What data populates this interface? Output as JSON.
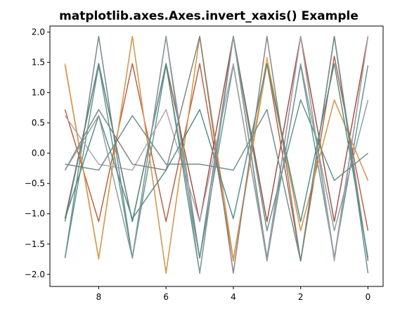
{
  "chart_data": {
    "type": "line",
    "title": "matplotlib.axes.Axes.invert_xaxis() Example",
    "xlabel": "",
    "ylabel": "",
    "x": [
      9,
      8,
      7,
      6,
      5,
      4,
      3,
      2,
      1,
      0
    ],
    "xlim": [
      9.45,
      -0.45
    ],
    "ylim": [
      -2.2,
      2.1
    ],
    "x_inverted": true,
    "grid": false,
    "legend": "none",
    "xticks": [
      8,
      6,
      4,
      2,
      0
    ],
    "yticks": [
      2.0,
      1.5,
      1.0,
      0.5,
      0.0,
      -0.5,
      -1.0,
      -1.5,
      -2.0
    ],
    "xtick_labels": [
      "8",
      "6",
      "4",
      "2",
      "0"
    ],
    "ytick_labels": [
      "2.0",
      "1.5",
      "1.0",
      "0.5",
      "0.0",
      "−0.5",
      "−1.0",
      "−1.5",
      "−2.0"
    ],
    "series": [
      {
        "color": "#70858a",
        "values": [
          -1.73,
          1.93,
          -1.73,
          1.93,
          -1.73,
          1.93,
          -1.73,
          1.93,
          -1.73,
          1.93
        ]
      },
      {
        "color": "#5a9590",
        "values": [
          -1.73,
          1.45,
          -1.73,
          1.45,
          -1.73,
          1.45,
          -1.73,
          1.45,
          -1.73,
          1.45
        ]
      },
      {
        "color": "#b55a3b",
        "values": [
          0.72,
          -1.13,
          1.48,
          -1.13,
          1.48,
          -1.78,
          1.48,
          -1.78,
          1.6,
          -1.28
        ]
      },
      {
        "color": "#9b4a3a",
        "values": [
          -1.08,
          1.48,
          -1.13,
          1.48,
          -1.13,
          1.93,
          -1.13,
          1.93,
          -1.13,
          1.93
        ]
      },
      {
        "color": "#e0a040",
        "values": [
          1.48,
          -1.73,
          1.93,
          -1.98,
          1.93,
          -1.78,
          1.58,
          -1.28,
          0.88,
          -0.45
        ]
      },
      {
        "color": "#d59a55",
        "values": [
          1.45,
          -1.75,
          1.93,
          -1.98,
          1.93,
          -1.75,
          1.48,
          -1.28,
          0.88,
          -0.45
        ]
      },
      {
        "color": "#b0a0aa",
        "values": [
          0.62,
          -0.18,
          -0.28,
          0.72,
          -1.13,
          1.48,
          -1.78,
          1.93,
          -1.78,
          1.93
        ]
      },
      {
        "color": "#808080",
        "values": [
          -0.28,
          0.72,
          -0.18,
          -0.28,
          1.93,
          -1.98,
          1.93,
          -1.78,
          1.93,
          -1.78
        ]
      },
      {
        "color": "#6a8a8a",
        "values": [
          -0.18,
          -0.28,
          0.62,
          -0.18,
          -0.18,
          -0.28,
          0.72,
          -1.78,
          1.93,
          -1.98
        ]
      },
      {
        "color": "#5a8f8a",
        "values": [
          -1.13,
          1.48,
          -1.13,
          1.48,
          -1.98,
          1.93,
          -1.28,
          0.88,
          -0.45,
          0.0
        ]
      },
      {
        "color": "#4f8a85",
        "values": [
          -1.08,
          0.62,
          -1.08,
          -0.28,
          0.72,
          -1.08,
          1.48,
          -1.13,
          1.48,
          -1.73
        ]
      },
      {
        "color": "#8a9a9a",
        "values": [
          -0.28,
          0.62,
          -1.73,
          1.93,
          -1.98,
          1.93,
          -1.78,
          1.48,
          -1.28,
          0.88
        ]
      }
    ]
  }
}
